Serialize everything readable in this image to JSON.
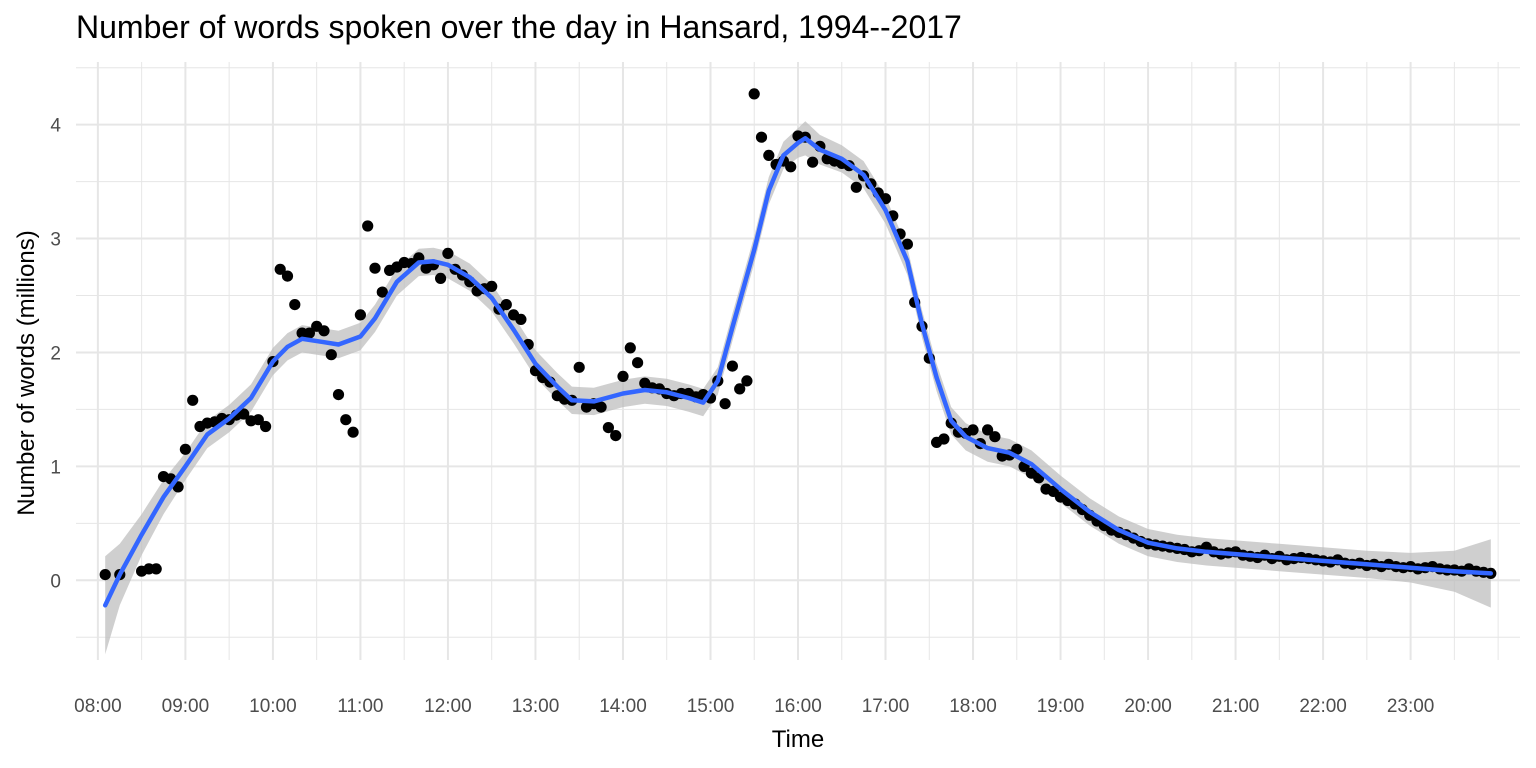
{
  "chart_data": {
    "type": "scatter",
    "title": "Number of words spoken over the day in Hansard, 1994--2017",
    "xlabel": "Time",
    "ylabel": "Number of words (millions)",
    "xlim": [
      "07:45",
      "24:15"
    ],
    "ylim": [
      -0.7,
      4.55
    ],
    "x_ticks": [
      "08:00",
      "09:00",
      "10:00",
      "11:00",
      "12:00",
      "13:00",
      "14:00",
      "15:00",
      "16:00",
      "17:00",
      "18:00",
      "19:00",
      "20:00",
      "21:00",
      "22:00",
      "23:00"
    ],
    "y_ticks": [
      0,
      1,
      2,
      3,
      4
    ],
    "grid": true,
    "legend": "none",
    "colors": {
      "points": "#000000",
      "smooth": "#3366ff",
      "band": "#bdbdbd",
      "grid": "#e6e6e6"
    },
    "series": [
      {
        "type": "scatter",
        "points": [
          [
            "08:05",
            0.05
          ],
          [
            "08:15",
            0.05
          ],
          [
            "08:30",
            0.08
          ],
          [
            "08:35",
            0.1
          ],
          [
            "08:40",
            0.1
          ],
          [
            "08:45",
            0.91
          ],
          [
            "08:50",
            0.89
          ],
          [
            "08:55",
            0.82
          ],
          [
            "09:00",
            1.15
          ],
          [
            "09:05",
            1.58
          ],
          [
            "09:10",
            1.35
          ],
          [
            "09:15",
            1.38
          ],
          [
            "09:20",
            1.39
          ],
          [
            "09:25",
            1.42
          ],
          [
            "09:30",
            1.41
          ],
          [
            "09:35",
            1.45
          ],
          [
            "09:40",
            1.46
          ],
          [
            "09:45",
            1.4
          ],
          [
            "09:50",
            1.41
          ],
          [
            "09:55",
            1.35
          ],
          [
            "10:00",
            1.92
          ],
          [
            "10:05",
            2.73
          ],
          [
            "10:10",
            2.67
          ],
          [
            "10:15",
            2.42
          ],
          [
            "10:20",
            2.17
          ],
          [
            "10:25",
            2.17
          ],
          [
            "10:30",
            2.23
          ],
          [
            "10:35",
            2.19
          ],
          [
            "10:40",
            1.98
          ],
          [
            "10:45",
            1.63
          ],
          [
            "10:50",
            1.41
          ],
          [
            "10:55",
            1.3
          ],
          [
            "11:00",
            2.33
          ],
          [
            "11:05",
            3.11
          ],
          [
            "11:10",
            2.74
          ],
          [
            "11:15",
            2.53
          ],
          [
            "11:20",
            2.72
          ],
          [
            "11:25",
            2.75
          ],
          [
            "11:30",
            2.79
          ],
          [
            "11:35",
            2.78
          ],
          [
            "11:40",
            2.83
          ],
          [
            "11:45",
            2.74
          ],
          [
            "11:50",
            2.77
          ],
          [
            "11:55",
            2.65
          ],
          [
            "12:00",
            2.87
          ],
          [
            "12:05",
            2.73
          ],
          [
            "12:10",
            2.68
          ],
          [
            "12:15",
            2.62
          ],
          [
            "12:20",
            2.54
          ],
          [
            "12:25",
            2.56
          ],
          [
            "12:30",
            2.58
          ],
          [
            "12:35",
            2.38
          ],
          [
            "12:40",
            2.42
          ],
          [
            "12:45",
            2.33
          ],
          [
            "12:50",
            2.29
          ],
          [
            "12:55",
            2.07
          ],
          [
            "13:00",
            1.84
          ],
          [
            "13:05",
            1.78
          ],
          [
            "13:10",
            1.74
          ],
          [
            "13:15",
            1.62
          ],
          [
            "13:20",
            1.59
          ],
          [
            "13:25",
            1.58
          ],
          [
            "13:30",
            1.87
          ],
          [
            "13:35",
            1.52
          ],
          [
            "13:40",
            1.55
          ],
          [
            "13:45",
            1.52
          ],
          [
            "13:50",
            1.34
          ],
          [
            "13:55",
            1.27
          ],
          [
            "14:00",
            1.79
          ],
          [
            "14:05",
            2.04
          ],
          [
            "14:10",
            1.91
          ],
          [
            "14:15",
            1.73
          ],
          [
            "14:20",
            1.69
          ],
          [
            "14:25",
            1.68
          ],
          [
            "14:30",
            1.64
          ],
          [
            "14:35",
            1.62
          ],
          [
            "14:40",
            1.64
          ],
          [
            "14:45",
            1.64
          ],
          [
            "14:50",
            1.61
          ],
          [
            "14:55",
            1.63
          ],
          [
            "15:00",
            1.6
          ],
          [
            "15:05",
            1.75
          ],
          [
            "15:10",
            1.55
          ],
          [
            "15:15",
            1.88
          ],
          [
            "15:20",
            1.68
          ],
          [
            "15:25",
            1.75
          ],
          [
            "15:30",
            4.27
          ],
          [
            "15:35",
            3.89
          ],
          [
            "15:40",
            3.73
          ],
          [
            "15:45",
            3.65
          ],
          [
            "15:50",
            3.68
          ],
          [
            "15:55",
            3.63
          ],
          [
            "16:00",
            3.9
          ],
          [
            "16:05",
            3.89
          ],
          [
            "16:10",
            3.67
          ],
          [
            "16:15",
            3.81
          ],
          [
            "16:20",
            3.7
          ],
          [
            "16:25",
            3.68
          ],
          [
            "16:30",
            3.66
          ],
          [
            "16:35",
            3.64
          ],
          [
            "16:40",
            3.45
          ],
          [
            "16:45",
            3.55
          ],
          [
            "16:50",
            3.48
          ],
          [
            "16:55",
            3.4
          ],
          [
            "17:00",
            3.35
          ],
          [
            "17:05",
            3.2
          ],
          [
            "17:10",
            3.04
          ],
          [
            "17:15",
            2.95
          ],
          [
            "17:20",
            2.44
          ],
          [
            "17:25",
            2.23
          ],
          [
            "17:30",
            1.95
          ],
          [
            "17:35",
            1.21
          ],
          [
            "17:40",
            1.24
          ],
          [
            "17:45",
            1.38
          ],
          [
            "17:50",
            1.3
          ],
          [
            "17:55",
            1.29
          ],
          [
            "18:00",
            1.32
          ],
          [
            "18:05",
            1.2
          ],
          [
            "18:10",
            1.32
          ],
          [
            "18:15",
            1.26
          ],
          [
            "18:20",
            1.09
          ],
          [
            "18:25",
            1.1
          ],
          [
            "18:30",
            1.15
          ],
          [
            "18:35",
            1.0
          ],
          [
            "18:40",
            0.94
          ],
          [
            "18:45",
            0.9
          ],
          [
            "18:50",
            0.8
          ],
          [
            "18:55",
            0.78
          ],
          [
            "19:00",
            0.73
          ],
          [
            "19:05",
            0.7
          ],
          [
            "19:10",
            0.67
          ],
          [
            "19:15",
            0.62
          ],
          [
            "19:20",
            0.57
          ],
          [
            "19:25",
            0.52
          ],
          [
            "19:30",
            0.48
          ],
          [
            "19:35",
            0.44
          ],
          [
            "19:40",
            0.42
          ],
          [
            "19:45",
            0.4
          ],
          [
            "19:50",
            0.37
          ],
          [
            "19:55",
            0.34
          ],
          [
            "20:00",
            0.32
          ],
          [
            "20:05",
            0.31
          ],
          [
            "20:10",
            0.3
          ],
          [
            "20:15",
            0.29
          ],
          [
            "20:20",
            0.28
          ],
          [
            "20:25",
            0.27
          ],
          [
            "20:30",
            0.25
          ],
          [
            "20:35",
            0.26
          ],
          [
            "20:40",
            0.29
          ],
          [
            "20:45",
            0.25
          ],
          [
            "20:50",
            0.23
          ],
          [
            "20:55",
            0.24
          ],
          [
            "21:00",
            0.25
          ],
          [
            "21:05",
            0.22
          ],
          [
            "21:10",
            0.21
          ],
          [
            "21:15",
            0.2
          ],
          [
            "21:20",
            0.22
          ],
          [
            "21:25",
            0.19
          ],
          [
            "21:30",
            0.21
          ],
          [
            "21:35",
            0.18
          ],
          [
            "21:40",
            0.19
          ],
          [
            "21:45",
            0.2
          ],
          [
            "21:50",
            0.19
          ],
          [
            "21:55",
            0.18
          ],
          [
            "22:00",
            0.17
          ],
          [
            "22:05",
            0.16
          ],
          [
            "22:10",
            0.18
          ],
          [
            "22:15",
            0.15
          ],
          [
            "22:20",
            0.14
          ],
          [
            "22:25",
            0.15
          ],
          [
            "22:30",
            0.13
          ],
          [
            "22:35",
            0.14
          ],
          [
            "22:40",
            0.12
          ],
          [
            "22:45",
            0.14
          ],
          [
            "22:50",
            0.12
          ],
          [
            "22:55",
            0.11
          ],
          [
            "23:00",
            0.12
          ],
          [
            "23:05",
            0.1
          ],
          [
            "23:10",
            0.11
          ],
          [
            "23:15",
            0.12
          ],
          [
            "23:20",
            0.1
          ],
          [
            "23:25",
            0.09
          ],
          [
            "23:30",
            0.09
          ],
          [
            "23:35",
            0.08
          ],
          [
            "23:40",
            0.1
          ],
          [
            "23:45",
            0.08
          ],
          [
            "23:50",
            0.07
          ],
          [
            "23:55",
            0.06
          ]
        ]
      },
      {
        "type": "line",
        "smooth": [
          [
            "08:05",
            -0.22
          ],
          [
            "08:15",
            0.05
          ],
          [
            "08:30",
            0.4
          ],
          [
            "08:45",
            0.73
          ],
          [
            "09:00",
            1.0
          ],
          [
            "09:15",
            1.28
          ],
          [
            "09:30",
            1.42
          ],
          [
            "09:45",
            1.6
          ],
          [
            "10:00",
            1.92
          ],
          [
            "10:10",
            2.05
          ],
          [
            "10:20",
            2.12
          ],
          [
            "10:35",
            2.09
          ],
          [
            "10:45",
            2.07
          ],
          [
            "11:00",
            2.14
          ],
          [
            "11:10",
            2.3
          ],
          [
            "11:25",
            2.62
          ],
          [
            "11:40",
            2.79
          ],
          [
            "11:50",
            2.8
          ],
          [
            "12:00",
            2.77
          ],
          [
            "12:15",
            2.66
          ],
          [
            "12:30",
            2.48
          ],
          [
            "12:45",
            2.2
          ],
          [
            "13:00",
            1.9
          ],
          [
            "13:15",
            1.7
          ],
          [
            "13:25",
            1.58
          ],
          [
            "13:40",
            1.57
          ],
          [
            "14:00",
            1.64
          ],
          [
            "14:15",
            1.67
          ],
          [
            "14:30",
            1.65
          ],
          [
            "14:45",
            1.6
          ],
          [
            "14:55",
            1.56
          ],
          [
            "15:05",
            1.75
          ],
          [
            "15:15",
            2.22
          ],
          [
            "15:30",
            2.9
          ],
          [
            "15:40",
            3.42
          ],
          [
            "15:50",
            3.73
          ],
          [
            "16:00",
            3.84
          ],
          [
            "16:05",
            3.88
          ],
          [
            "16:15",
            3.78
          ],
          [
            "16:30",
            3.7
          ],
          [
            "16:45",
            3.56
          ],
          [
            "17:00",
            3.25
          ],
          [
            "17:15",
            2.8
          ],
          [
            "17:25",
            2.25
          ],
          [
            "17:35",
            1.78
          ],
          [
            "17:45",
            1.4
          ],
          [
            "17:55",
            1.26
          ],
          [
            "18:10",
            1.16
          ],
          [
            "18:25",
            1.12
          ],
          [
            "18:40",
            1.02
          ],
          [
            "19:00",
            0.8
          ],
          [
            "19:20",
            0.6
          ],
          [
            "19:40",
            0.44
          ],
          [
            "20:00",
            0.33
          ],
          [
            "20:20",
            0.28
          ],
          [
            "20:40",
            0.25
          ],
          [
            "21:00",
            0.23
          ],
          [
            "21:30",
            0.2
          ],
          [
            "22:00",
            0.17
          ],
          [
            "22:30",
            0.14
          ],
          [
            "23:00",
            0.11
          ],
          [
            "23:30",
            0.08
          ],
          [
            "23:55",
            0.06
          ]
        ],
        "band_halfwidth": [
          0.43,
          0.27,
          0.18,
          0.15,
          0.12,
          0.12,
          0.12,
          0.12,
          0.12,
          0.12,
          0.12,
          0.12,
          0.12,
          0.12,
          0.12,
          0.12,
          0.12,
          0.12,
          0.12,
          0.12,
          0.12,
          0.12,
          0.12,
          0.12,
          0.12,
          0.12,
          0.12,
          0.12,
          0.12,
          0.12,
          0.12,
          0.12,
          0.12,
          0.12,
          0.12,
          0.12,
          0.13,
          0.15,
          0.13,
          0.12,
          0.12,
          0.12,
          0.12,
          0.12,
          0.12,
          0.12,
          0.12,
          0.12,
          0.12,
          0.12,
          0.12,
          0.12,
          0.12,
          0.12,
          0.12,
          0.12,
          0.12,
          0.12,
          0.12,
          0.12,
          0.13,
          0.18,
          0.3
        ]
      }
    ]
  }
}
